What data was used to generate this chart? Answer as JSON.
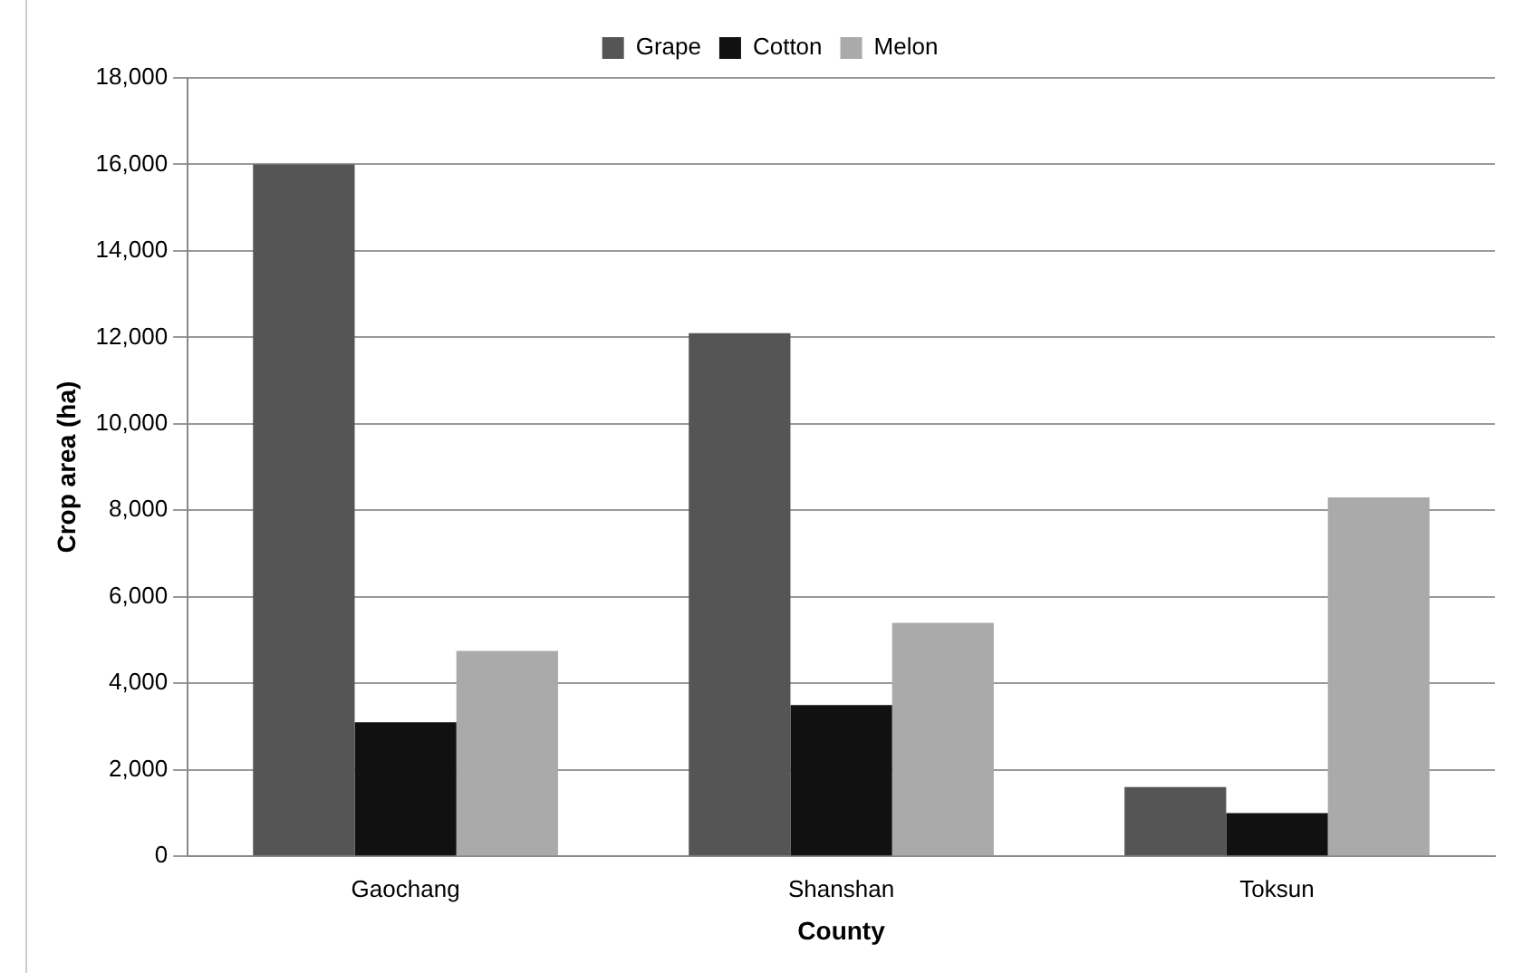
{
  "chart_data": {
    "type": "bar",
    "categories": [
      "Gaochang",
      "Shanshan",
      "Toksun"
    ],
    "series": [
      {
        "name": "Grape",
        "color": "#555555",
        "values": [
          16000,
          12100,
          1600
        ]
      },
      {
        "name": "Cotton",
        "color": "#111111",
        "values": [
          3100,
          3500,
          1000
        ]
      },
      {
        "name": "Melon",
        "color": "#aaaaaa",
        "values": [
          4750,
          5400,
          8300
        ]
      }
    ],
    "xlabel": "County",
    "ylabel": "Crop area (ha)",
    "ylim": [
      0,
      18000
    ],
    "yticks": [
      0,
      {
        "value": 2000,
        "label": "2,000"
      },
      {
        "value": 4000,
        "label": "4,000"
      },
      {
        "value": 6000,
        "label": "6,000"
      },
      {
        "value": 8000,
        "label": "8,000"
      },
      {
        "value": 10000,
        "label": "10,000"
      },
      {
        "value": 12000,
        "label": "12,000"
      },
      {
        "value": 14000,
        "label": "14,000"
      },
      {
        "value": 16000,
        "label": "16,000"
      },
      {
        "value": 18000,
        "label": "18,000"
      }
    ],
    "grid": "y",
    "legend": "top"
  }
}
